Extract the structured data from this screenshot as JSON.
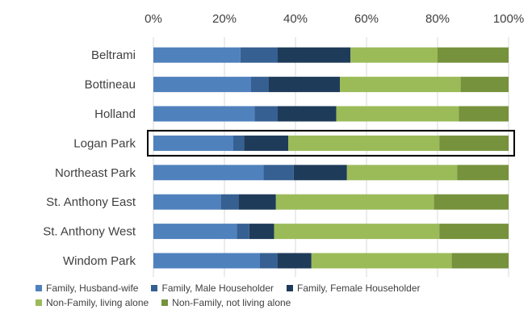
{
  "chart_data": {
    "type": "bar",
    "orientation": "horizontal",
    "stacked": "percent",
    "categories": [
      "Beltrami",
      "Bottineau",
      "Holland",
      "Logan Park",
      "Northeast Park",
      "St. Anthony East",
      "St. Anthony West",
      "Windom Park"
    ],
    "highlighted_category": "Logan Park",
    "xlim": [
      0,
      100
    ],
    "x_ticks": [
      "0%",
      "20%",
      "40%",
      "60%",
      "80%",
      "100%"
    ],
    "x_axis_position": "top",
    "grid": true,
    "legend_position": "bottom",
    "series": [
      {
        "name": "Family, Husband-wife",
        "color": "#4f81bd",
        "values": [
          24.5,
          27.5,
          28.5,
          22.5,
          31,
          19,
          23.5,
          30
        ]
      },
      {
        "name": "Family, Male Householder",
        "color": "#366092",
        "values": [
          10.5,
          5,
          6.5,
          3,
          8.5,
          5,
          3.5,
          5
        ]
      },
      {
        "name": "Family, Female Householder",
        "color": "#1f3b5a",
        "values": [
          20.5,
          20,
          16.5,
          12.5,
          15,
          10.5,
          7,
          9.5
        ]
      },
      {
        "name": "Non-Family, living alone",
        "color": "#9bbb59",
        "values": [
          24.5,
          34,
          34.5,
          42.5,
          31,
          44.5,
          46.5,
          39.5
        ]
      },
      {
        "name": "Non-Family, not living alone",
        "color": "#76923c",
        "values": [
          20,
          13.5,
          14,
          19.5,
          14.5,
          21,
          19.5,
          16
        ]
      }
    ]
  }
}
